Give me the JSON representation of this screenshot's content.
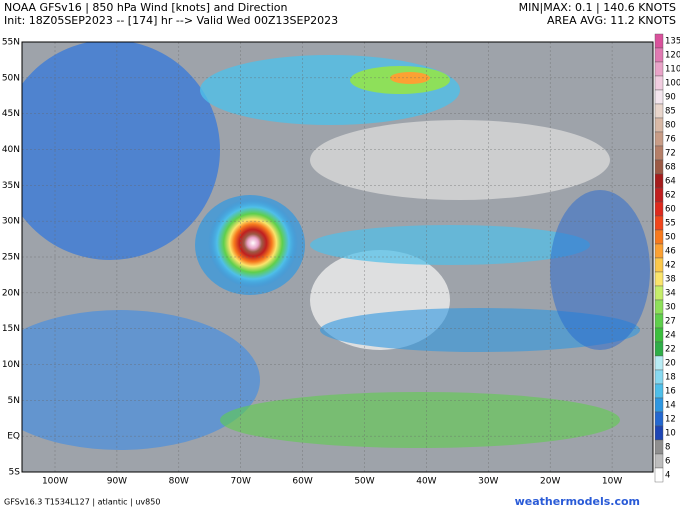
{
  "header": {
    "title": "NOAA GFSv16 | 850 hPa Wind [knots] and Direction",
    "init": "Init: 18Z05SEP2023 -- [174] hr --> Valid Wed 00Z13SEP2023",
    "minmax": "MIN|MAX: 0.1 | 140.6 KNOTS",
    "area_avg": "AREA AVG: 11.2 KNOTS"
  },
  "map": {
    "lat_labels": [
      "55N",
      "50N",
      "45N",
      "40N",
      "35N",
      "30N",
      "25N",
      "20N",
      "15N",
      "10N",
      "5N",
      "EQ",
      "5S"
    ],
    "lon_labels": [
      "100W",
      "90W",
      "80W",
      "70W",
      "60W",
      "50W",
      "40W",
      "30W",
      "20W",
      "10W"
    ]
  },
  "colorbar": [
    {
      "label": "135",
      "color": "#d9529c"
    },
    {
      "label": "120",
      "color": "#e07ab2"
    },
    {
      "label": "110",
      "color": "#e9a3c8"
    },
    {
      "label": "100",
      "color": "#f1cde0"
    },
    {
      "label": "90",
      "color": "#f4e6ee"
    },
    {
      "label": "85",
      "color": "#e9d6cc"
    },
    {
      "label": "80",
      "color": "#d9b9a6"
    },
    {
      "label": "76",
      "color": "#c89c86"
    },
    {
      "label": "72",
      "color": "#b57f68"
    },
    {
      "label": "68",
      "color": "#9c5a45"
    },
    {
      "label": "64",
      "color": "#a51c1c"
    },
    {
      "label": "62",
      "color": "#c01f1f"
    },
    {
      "label": "60",
      "color": "#dd2a1e"
    },
    {
      "label": "55",
      "color": "#f0461c"
    },
    {
      "label": "50",
      "color": "#f77a1e"
    },
    {
      "label": "46",
      "color": "#fba133"
    },
    {
      "label": "42",
      "color": "#fcc84a"
    },
    {
      "label": "38",
      "color": "#fbe46b"
    },
    {
      "label": "34",
      "color": "#c6ee6a"
    },
    {
      "label": "30",
      "color": "#8ee05a"
    },
    {
      "label": "27",
      "color": "#5fcf4c"
    },
    {
      "label": "24",
      "color": "#3cbf3e"
    },
    {
      "label": "22",
      "color": "#2fae48"
    },
    {
      "label": "20",
      "color": "#b8ecf5"
    },
    {
      "label": "18",
      "color": "#88d9f0"
    },
    {
      "label": "16",
      "color": "#4fbfe9"
    },
    {
      "label": "14",
      "color": "#2f97e1"
    },
    {
      "label": "12",
      "color": "#2468d0"
    },
    {
      "label": "10",
      "color": "#1d45b4"
    },
    {
      "label": "8",
      "color": "#8f8f8f"
    },
    {
      "label": "6",
      "color": "#bdbdbd"
    },
    {
      "label": "4",
      "color": "#ffffff"
    }
  ],
  "footer": {
    "model": "GFSv16.3 T1534L127 | atlantic | uv850",
    "site": "weathermodels.com"
  }
}
